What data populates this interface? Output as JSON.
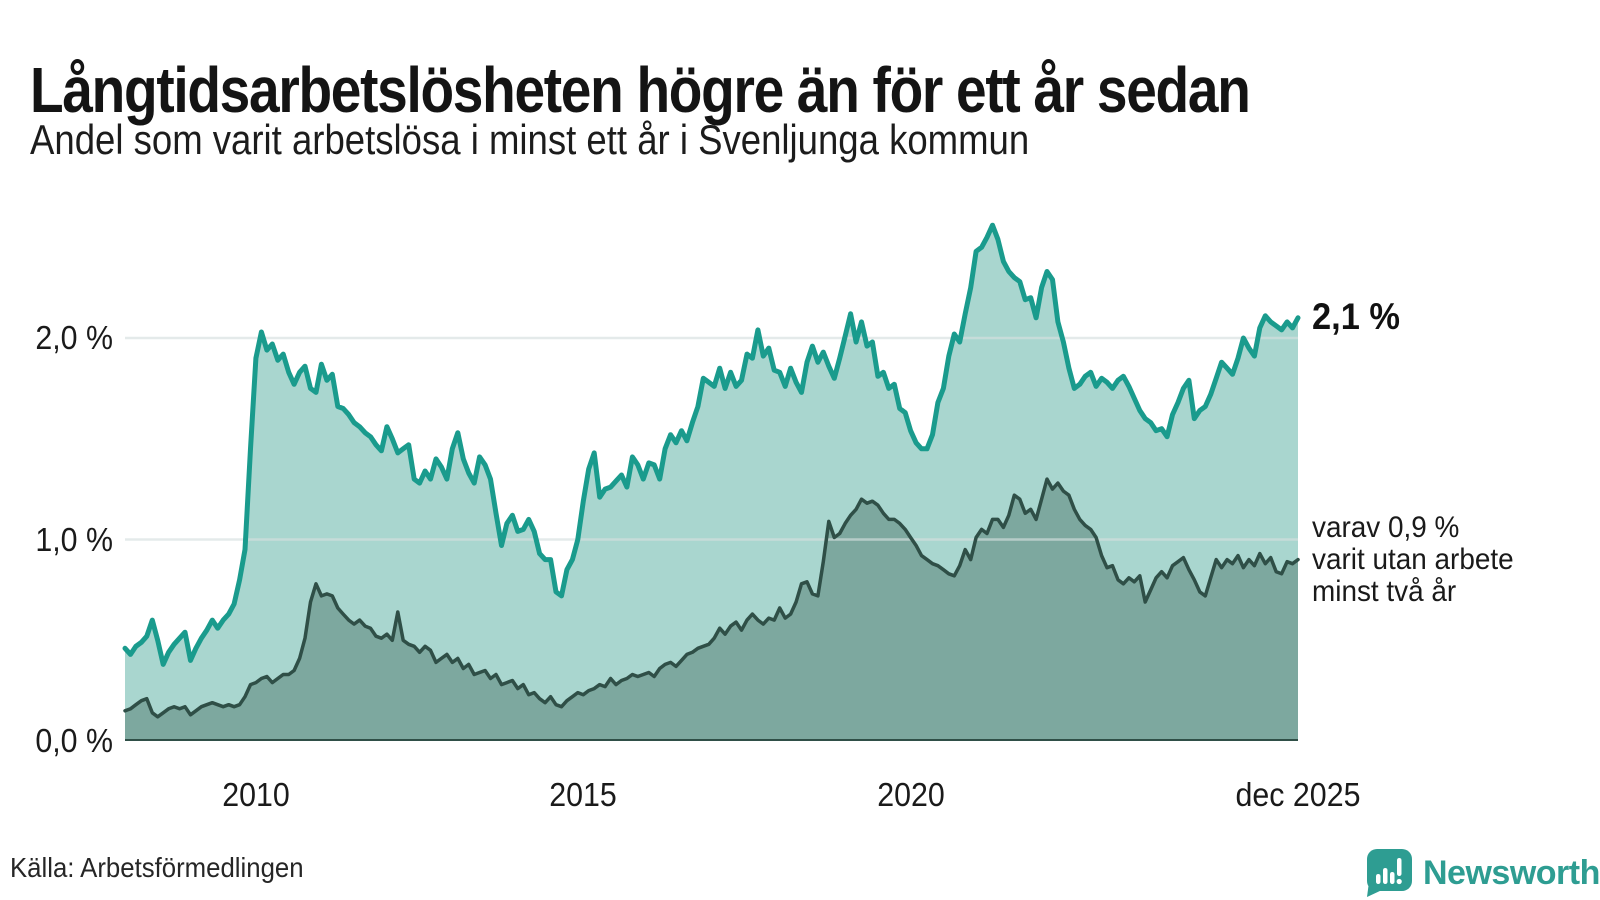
{
  "title": "Långtidsarbetslösheten högre än för ett år sedan",
  "subtitle": "Andel som varit arbetslösa i minst ett år i Svenljunga kommun",
  "source": "Källa: Arbetsförmedlingen",
  "brand": {
    "name": "Newsworthy",
    "color": "#2E9D92"
  },
  "y_axis": {
    "ticks": [
      "2,0 %",
      "1,0 %",
      "0,0 %"
    ]
  },
  "x_axis": {
    "ticks": [
      "2010",
      "2015",
      "2020",
      "dec 2025"
    ]
  },
  "annotations": {
    "end_value_label": "2,1 %",
    "secondary_line1": "varav 0,9 %",
    "secondary_line2": "varit utan arbete",
    "secondary_line3": "minst två år"
  },
  "chart_data": {
    "type": "area",
    "unit": "percent",
    "x_start": "2008-01",
    "x_end": "2025-12",
    "x_step_months": 1,
    "ylim": [
      0,
      2.7
    ],
    "gridlines": [
      1.0,
      2.0
    ],
    "grid_on": true,
    "legend_position": "right-inline",
    "style": {
      "gridline_color": "rgba(214,222,222,0.65)"
    },
    "xtick_years": [
      "2010",
      "2015",
      "2020",
      "dec 2025"
    ],
    "series": [
      {
        "name": "Arbetslösa minst ett år",
        "end_value": 2.1,
        "color": "#1A9B8D",
        "fill": "#A9D6CF",
        "values": [
          0.46,
          0.43,
          0.47,
          0.49,
          0.52,
          0.6,
          0.5,
          0.38,
          0.44,
          0.48,
          0.51,
          0.54,
          0.4,
          0.46,
          0.51,
          0.55,
          0.6,
          0.56,
          0.6,
          0.63,
          0.68,
          0.8,
          0.95,
          1.45,
          1.9,
          2.03,
          1.94,
          1.97,
          1.89,
          1.92,
          1.83,
          1.77,
          1.83,
          1.86,
          1.75,
          1.73,
          1.87,
          1.79,
          1.82,
          1.66,
          1.65,
          1.62,
          1.58,
          1.56,
          1.53,
          1.51,
          1.47,
          1.44,
          1.56,
          1.5,
          1.43,
          1.45,
          1.47,
          1.3,
          1.28,
          1.34,
          1.3,
          1.4,
          1.36,
          1.3,
          1.45,
          1.53,
          1.4,
          1.33,
          1.28,
          1.41,
          1.37,
          1.3,
          1.13,
          0.97,
          1.08,
          1.12,
          1.04,
          1.05,
          1.1,
          1.04,
          0.93,
          0.9,
          0.9,
          0.74,
          0.72,
          0.85,
          0.9,
          1.0,
          1.19,
          1.35,
          1.43,
          1.21,
          1.25,
          1.26,
          1.29,
          1.32,
          1.26,
          1.41,
          1.37,
          1.3,
          1.38,
          1.37,
          1.3,
          1.45,
          1.52,
          1.48,
          1.54,
          1.49,
          1.58,
          1.66,
          1.8,
          1.78,
          1.76,
          1.85,
          1.75,
          1.83,
          1.76,
          1.79,
          1.92,
          1.9,
          2.04,
          1.91,
          1.95,
          1.84,
          1.83,
          1.76,
          1.85,
          1.78,
          1.73,
          1.88,
          1.96,
          1.88,
          1.93,
          1.86,
          1.8,
          1.9,
          2.01,
          2.12,
          1.98,
          2.08,
          1.96,
          1.98,
          1.81,
          1.83,
          1.75,
          1.77,
          1.65,
          1.63,
          1.54,
          1.48,
          1.45,
          1.45,
          1.52,
          1.68,
          1.75,
          1.91,
          2.02,
          1.98,
          2.12,
          2.25,
          2.43,
          2.45,
          2.5,
          2.56,
          2.49,
          2.38,
          2.33,
          2.3,
          2.28,
          2.19,
          2.2,
          2.1,
          2.25,
          2.33,
          2.29,
          2.08,
          1.98,
          1.85,
          1.75,
          1.77,
          1.81,
          1.83,
          1.76,
          1.8,
          1.78,
          1.75,
          1.79,
          1.81,
          1.76,
          1.7,
          1.64,
          1.6,
          1.58,
          1.54,
          1.55,
          1.51,
          1.62,
          1.68,
          1.75,
          1.79,
          1.6,
          1.64,
          1.66,
          1.72,
          1.8,
          1.88,
          1.85,
          1.82,
          1.9,
          2.0,
          1.95,
          1.91,
          2.05,
          2.11,
          2.08,
          2.06,
          2.04,
          2.08,
          2.05,
          2.1
        ]
      },
      {
        "name": "Arbetslösa minst två år",
        "end_value": 0.9,
        "color": "#2F4F47",
        "fill": "#7DA89F",
        "values": [
          0.15,
          0.16,
          0.18,
          0.2,
          0.21,
          0.14,
          0.12,
          0.14,
          0.16,
          0.17,
          0.16,
          0.17,
          0.13,
          0.15,
          0.17,
          0.18,
          0.19,
          0.18,
          0.17,
          0.18,
          0.17,
          0.18,
          0.22,
          0.28,
          0.29,
          0.31,
          0.32,
          0.29,
          0.31,
          0.33,
          0.33,
          0.35,
          0.41,
          0.51,
          0.69,
          0.78,
          0.72,
          0.73,
          0.72,
          0.66,
          0.63,
          0.6,
          0.58,
          0.6,
          0.57,
          0.56,
          0.52,
          0.51,
          0.53,
          0.5,
          0.64,
          0.5,
          0.48,
          0.47,
          0.44,
          0.47,
          0.45,
          0.39,
          0.41,
          0.43,
          0.39,
          0.41,
          0.36,
          0.38,
          0.33,
          0.34,
          0.35,
          0.31,
          0.33,
          0.28,
          0.29,
          0.3,
          0.26,
          0.28,
          0.23,
          0.24,
          0.21,
          0.19,
          0.22,
          0.18,
          0.17,
          0.2,
          0.22,
          0.24,
          0.23,
          0.25,
          0.26,
          0.28,
          0.27,
          0.31,
          0.28,
          0.3,
          0.31,
          0.33,
          0.32,
          0.33,
          0.34,
          0.32,
          0.36,
          0.38,
          0.39,
          0.37,
          0.4,
          0.43,
          0.44,
          0.46,
          0.47,
          0.48,
          0.51,
          0.56,
          0.53,
          0.57,
          0.59,
          0.55,
          0.6,
          0.63,
          0.6,
          0.58,
          0.61,
          0.6,
          0.66,
          0.61,
          0.63,
          0.69,
          0.78,
          0.79,
          0.73,
          0.72,
          0.89,
          1.09,
          1.01,
          1.03,
          1.08,
          1.12,
          1.15,
          1.2,
          1.18,
          1.19,
          1.17,
          1.13,
          1.1,
          1.1,
          1.08,
          1.05,
          1.01,
          0.97,
          0.92,
          0.9,
          0.88,
          0.87,
          0.85,
          0.83,
          0.82,
          0.87,
          0.95,
          0.9,
          1.01,
          1.05,
          1.03,
          1.1,
          1.1,
          1.06,
          1.12,
          1.22,
          1.2,
          1.13,
          1.15,
          1.1,
          1.2,
          1.3,
          1.25,
          1.28,
          1.24,
          1.22,
          1.15,
          1.1,
          1.07,
          1.05,
          1.01,
          0.92,
          0.86,
          0.87,
          0.8,
          0.78,
          0.81,
          0.79,
          0.82,
          0.69,
          0.75,
          0.81,
          0.84,
          0.81,
          0.87,
          0.89,
          0.91,
          0.85,
          0.8,
          0.74,
          0.72,
          0.81,
          0.9,
          0.86,
          0.9,
          0.88,
          0.92,
          0.86,
          0.9,
          0.87,
          0.93,
          0.88,
          0.91,
          0.84,
          0.83,
          0.89,
          0.88,
          0.9
        ]
      }
    ]
  }
}
